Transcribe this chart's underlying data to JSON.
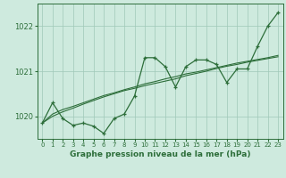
{
  "background_color": "#ceeade",
  "grid_color_major": "#a0c8b8",
  "grid_color_minor": "#b8ddd0",
  "line_color": "#2d6e3a",
  "xlabel": "Graphe pression niveau de la mer (hPa)",
  "ylim": [
    1019.5,
    1022.5
  ],
  "xlim": [
    -0.5,
    23.5
  ],
  "yticks": [
    1020,
    1021,
    1022
  ],
  "xticks": [
    0,
    1,
    2,
    3,
    4,
    5,
    6,
    7,
    8,
    9,
    10,
    11,
    12,
    13,
    14,
    15,
    16,
    17,
    18,
    19,
    20,
    21,
    22,
    23
  ],
  "series1_x": [
    0,
    1,
    2,
    3,
    4,
    5,
    6,
    7,
    8,
    9,
    10,
    11,
    12,
    13,
    14,
    15,
    16,
    17,
    18,
    19,
    20,
    21,
    22,
    23
  ],
  "series1_y": [
    1019.85,
    1020.3,
    1019.95,
    1019.8,
    1019.85,
    1019.78,
    1019.62,
    1019.95,
    1020.05,
    1020.45,
    1021.3,
    1021.3,
    1021.1,
    1020.65,
    1021.1,
    1021.25,
    1021.25,
    1021.15,
    1020.75,
    1021.05,
    1021.05,
    1021.55,
    1022.0,
    1022.3
  ],
  "series2_x": [
    0,
    1,
    2,
    3,
    4,
    5,
    6,
    7,
    8,
    9,
    10,
    11,
    12,
    13,
    14,
    15,
    16,
    17,
    18,
    19,
    20,
    21,
    22,
    23
  ],
  "series2_y": [
    1019.85,
    1020.0,
    1020.1,
    1020.18,
    1020.27,
    1020.35,
    1020.43,
    1020.5,
    1020.57,
    1020.62,
    1020.68,
    1020.73,
    1020.78,
    1020.83,
    1020.9,
    1020.95,
    1021.0,
    1021.06,
    1021.11,
    1021.15,
    1021.2,
    1021.24,
    1021.28,
    1021.32
  ],
  "series3_x": [
    0,
    1,
    2,
    3,
    4,
    5,
    6,
    7,
    8,
    9,
    10,
    11,
    12,
    13,
    14,
    15,
    16,
    17,
    18,
    19,
    20,
    21,
    22,
    23
  ],
  "series3_y": [
    1019.85,
    1020.05,
    1020.15,
    1020.22,
    1020.3,
    1020.38,
    1020.46,
    1020.52,
    1020.59,
    1020.65,
    1020.72,
    1020.77,
    1020.83,
    1020.88,
    1020.94,
    1020.98,
    1021.03,
    1021.08,
    1021.13,
    1021.18,
    1021.22,
    1021.26,
    1021.3,
    1021.35
  ]
}
